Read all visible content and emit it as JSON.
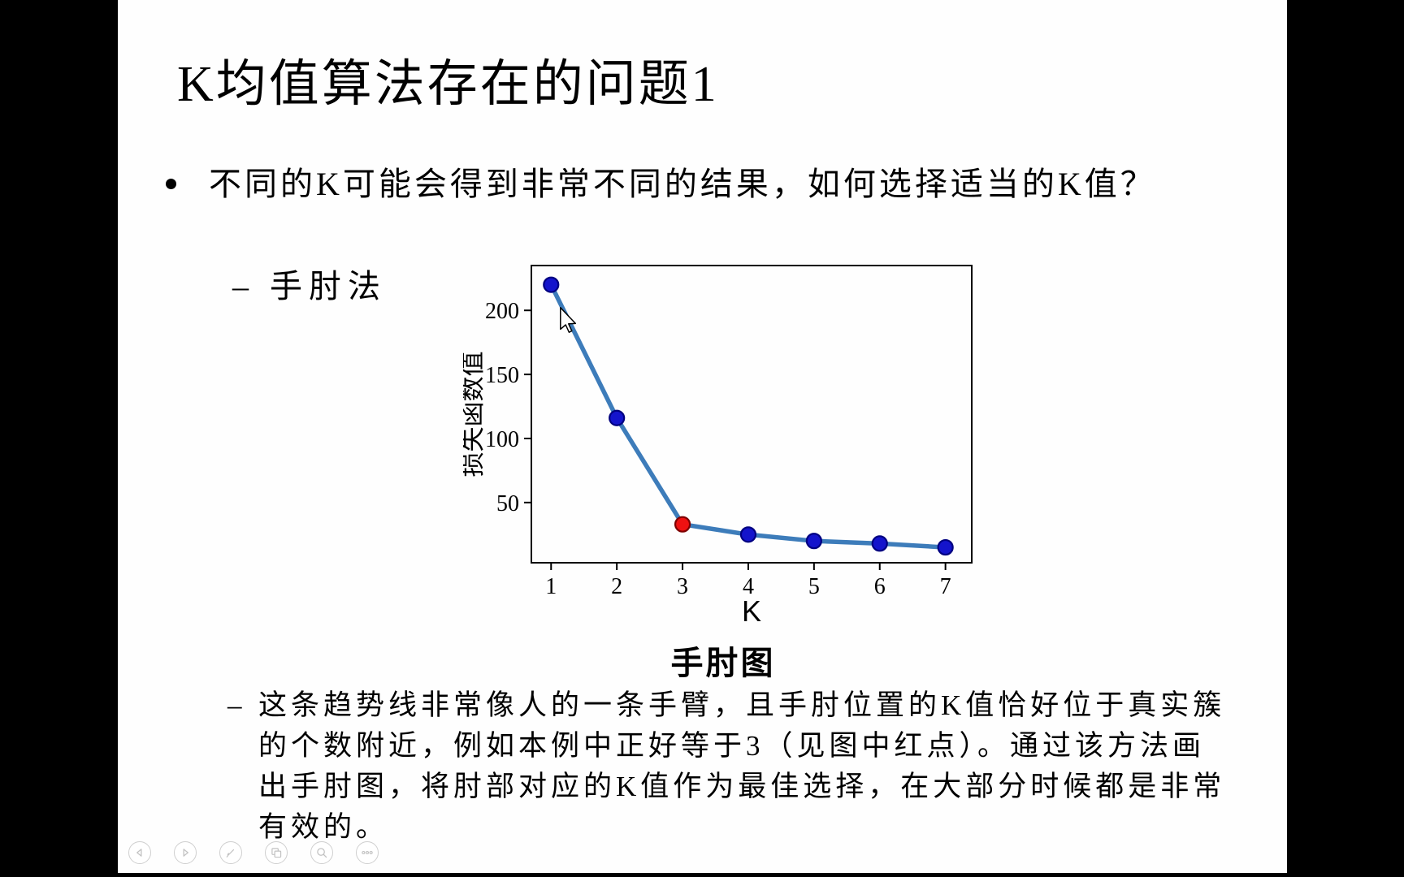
{
  "slide": {
    "title": "K均值算法存在的问题1",
    "bullet_text": "不同的K可能会得到非常不同的结果，如何选择适当的K值？",
    "sub_bullet": {
      "dash": "–",
      "label": "手肘法"
    },
    "chart_caption": "手肘图",
    "paragraph": {
      "dash": "–",
      "lines": [
        "这条趋势线非常像人的一条手臂，且手肘位置的K值恰好位于真实簇",
        "的个数附近，例如本例中正好等于3（见图中红点）。通过该方法画",
        "出手肘图，将肘部对应的K值作为最佳选择，在大部分时候都是非常",
        "有效的。"
      ]
    }
  },
  "chart_data": {
    "type": "line",
    "x": [
      1,
      2,
      3,
      4,
      5,
      6,
      7
    ],
    "values": [
      220,
      116,
      33,
      25,
      20,
      18,
      15
    ],
    "highlight": {
      "x": 3,
      "note": "elbow point shown in red"
    },
    "xlabel": "K",
    "ylabel": "损失函数值",
    "xticks": [
      1,
      2,
      3,
      4,
      5,
      6,
      7
    ],
    "yticks": [
      50,
      100,
      150,
      200
    ],
    "xlim": [
      0.7,
      7.4
    ],
    "ylim": [
      3,
      235
    ],
    "grid": false,
    "legend": false,
    "colors": {
      "line": "#3d7cba",
      "marker": "#1414cc",
      "marker_edge": "#000080",
      "highlight": "#ee1111",
      "highlight_edge": "#7e0000",
      "spine": "#000000"
    }
  },
  "toolbar": {
    "items": [
      {
        "name": "previous-slide",
        "icon": "chevron-left-icon"
      },
      {
        "name": "next-slide",
        "icon": "chevron-right-icon"
      },
      {
        "name": "pen",
        "icon": "pen-icon"
      },
      {
        "name": "slide-panel",
        "icon": "slides-icon"
      },
      {
        "name": "magnifier",
        "icon": "magnifier-icon"
      },
      {
        "name": "more-options",
        "icon": "ellipsis-icon"
      }
    ]
  }
}
